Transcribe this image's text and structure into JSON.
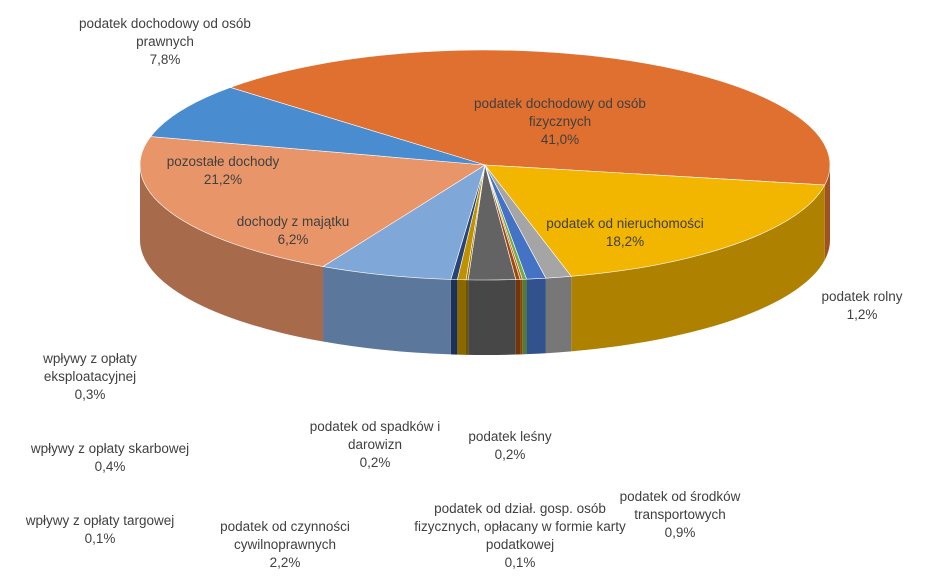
{
  "chart_data": {
    "type": "pie",
    "categories": [
      "podatek dochodowy od osób fizycznych",
      "podatek od nieruchomości",
      "podatek rolny",
      "podatek od środków transportowych",
      "podatek leśny",
      "podatek od dział. gosp. osób fizycznych, opłacany w formie karty podatkowej",
      "podatek od spadków i darowizn",
      "podatek od czynności cywilnoprawnych",
      "wpływy z opłaty targowej",
      "wpływy z opłaty skarbowej",
      "wpływy z opłaty eksploatacyjnej",
      "dochody z majątku",
      "pozostałe dochody",
      "podatek dochodowy od osób prawnych"
    ],
    "values": [
      41.0,
      18.2,
      1.2,
      0.9,
      0.2,
      0.1,
      0.2,
      2.2,
      0.1,
      0.4,
      0.3,
      6.2,
      21.2,
      7.8
    ],
    "value_labels": [
      "41,0%",
      "18,2%",
      "1,2%",
      "0,9%",
      "0,2%",
      "0,1%",
      "0,2%",
      "2,2%",
      "0,1%",
      "0,4%",
      "0,3%",
      "6,2%",
      "21,2%",
      "7,8%"
    ],
    "colors": [
      "#E07030",
      "#F2B500",
      "#A5A5A5",
      "#4472C4",
      "#70AD47",
      "#C55A11",
      "#9E480E",
      "#636363",
      "#997300",
      "#BF9000",
      "#264478",
      "#7FA7D8",
      "#E8956A",
      "#4A8CD0"
    ]
  }
}
